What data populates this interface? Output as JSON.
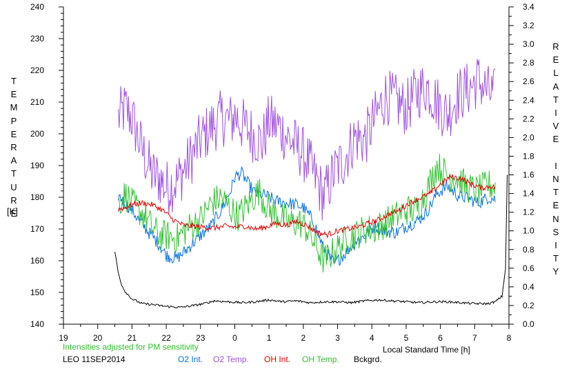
{
  "chart_data": {
    "type": "line",
    "left_axis_label": "TEMPERATURE",
    "left_axis_unit": "[K]",
    "right_axis_label": "RELATIVE INTENSITY",
    "xlabel": "Local Standard Time [h]",
    "left_ylim": [
      140,
      240
    ],
    "right_ylim": [
      0.0,
      3.4
    ],
    "x_range_hours": [
      19,
      32
    ],
    "x_tick_labels": [
      "19",
      "20",
      "21",
      "22",
      "23",
      "0",
      "1",
      "2",
      "3",
      "4",
      "5",
      "6",
      "7",
      "8"
    ],
    "left_tick_labels": [
      "140",
      "150",
      "160",
      "170",
      "180",
      "190",
      "200",
      "210",
      "220",
      "230",
      "240"
    ],
    "right_tick_labels": [
      "0.0",
      "0.2",
      "0.4",
      "0.6",
      "0.8",
      "1.0",
      "1.2",
      "1.4",
      "1.6",
      "1.8",
      "2.0",
      "2.2",
      "2.4",
      "2.6",
      "2.8",
      "3.0",
      "3.2",
      "3.4"
    ],
    "note": "Intensities adjusted for PM sensitivity",
    "station": "LEO 11SEP2014",
    "grid": false,
    "series": [
      {
        "name": "O2 Int.",
        "color": "#0070e0",
        "axis": "right",
        "x": [
          20.6,
          20.8,
          21.0,
          21.2,
          21.5,
          21.8,
          22.0,
          22.3,
          22.6,
          23.0,
          23.3,
          23.6,
          23.9,
          24.0,
          24.2,
          24.4,
          24.6,
          24.9,
          25.2,
          25.5,
          25.8,
          26.0,
          26.3,
          26.6,
          26.9,
          27.2,
          27.5,
          27.8,
          28.1,
          28.4,
          28.7,
          29.0,
          29.3,
          29.6,
          29.9,
          30.2,
          30.5,
          30.8,
          31.1,
          31.4,
          31.6
        ],
        "y": [
          1.38,
          1.3,
          1.22,
          1.12,
          0.98,
          0.85,
          0.74,
          0.7,
          0.8,
          0.95,
          1.05,
          1.22,
          1.45,
          1.58,
          1.62,
          1.5,
          1.4,
          1.38,
          1.32,
          1.3,
          1.28,
          1.25,
          1.1,
          0.8,
          0.65,
          0.75,
          0.88,
          0.95,
          1.05,
          1.0,
          0.98,
          1.05,
          1.1,
          1.2,
          1.4,
          1.48,
          1.38,
          1.35,
          1.3,
          1.36,
          1.34
        ]
      },
      {
        "name": "O2 Temp.",
        "color": "#a050e0",
        "axis": "left",
        "x": [
          20.6,
          20.8,
          21.0,
          21.2,
          21.4,
          21.6,
          21.8,
          22.0,
          22.3,
          22.6,
          23.0,
          23.3,
          23.6,
          23.9,
          24.0,
          24.2,
          24.5,
          24.8,
          25.0,
          25.3,
          25.6,
          25.9,
          26.1,
          26.4,
          26.6,
          26.9,
          27.2,
          27.5,
          27.8,
          28.1,
          28.4,
          28.7,
          29.0,
          29.3,
          29.6,
          29.9,
          30.2,
          30.5,
          30.8,
          31.1,
          31.4,
          31.6
        ],
        "y": [
          205,
          208,
          205,
          198,
          192,
          187,
          186,
          183,
          185,
          190,
          198,
          202,
          205,
          204,
          206,
          203,
          200,
          197,
          204,
          202,
          198,
          195,
          192,
          185,
          180,
          188,
          192,
          199,
          198,
          205,
          212,
          210,
          208,
          213,
          215,
          210,
          206,
          212,
          214,
          217,
          213,
          212
        ]
      },
      {
        "name": "OH Int.",
        "color": "#e00000",
        "axis": "right",
        "x": [
          20.6,
          20.8,
          21.0,
          21.3,
          21.6,
          21.9,
          22.2,
          22.5,
          22.8,
          23.1,
          23.4,
          23.7,
          24.0,
          24.3,
          24.6,
          24.9,
          25.2,
          25.5,
          25.8,
          26.1,
          26.4,
          26.7,
          27.0,
          27.3,
          27.6,
          27.9,
          28.2,
          28.5,
          28.8,
          29.1,
          29.4,
          29.7,
          30.0,
          30.3,
          30.6,
          30.9,
          31.2,
          31.5,
          31.6
        ],
        "y": [
          1.23,
          1.25,
          1.28,
          1.3,
          1.28,
          1.22,
          1.12,
          1.06,
          1.05,
          1.04,
          1.03,
          1.05,
          1.04,
          1.05,
          1.02,
          1.04,
          1.08,
          1.06,
          1.1,
          1.06,
          0.98,
          0.96,
          1.0,
          1.02,
          1.04,
          1.08,
          1.12,
          1.18,
          1.22,
          1.3,
          1.35,
          1.4,
          1.5,
          1.58,
          1.56,
          1.5,
          1.46,
          1.48,
          1.46
        ]
      },
      {
        "name": "OH Temp.",
        "color": "#30c030",
        "axis": "left",
        "x": [
          20.6,
          20.8,
          21.0,
          21.2,
          21.4,
          21.6,
          21.8,
          22.0,
          22.3,
          22.6,
          23.0,
          23.3,
          23.6,
          23.9,
          24.1,
          24.4,
          24.7,
          25.0,
          25.3,
          25.6,
          25.9,
          26.1,
          26.4,
          26.6,
          26.9,
          27.2,
          27.5,
          27.8,
          28.1,
          28.4,
          28.7,
          29.0,
          29.3,
          29.6,
          29.9,
          30.2,
          30.5,
          30.8,
          31.1,
          31.4,
          31.6
        ],
        "y": [
          178,
          181,
          178,
          176,
          174,
          170,
          168,
          168,
          167,
          170,
          173,
          178,
          180,
          176,
          174,
          178,
          182,
          176,
          174,
          172,
          172,
          170,
          164,
          160,
          163,
          166,
          168,
          170,
          170,
          172,
          174,
          176,
          176,
          182,
          190,
          187,
          186,
          183,
          182,
          184,
          183
        ]
      },
      {
        "name": "Bckgrd.",
        "color": "#000000",
        "axis": "right",
        "x": [
          20.5,
          20.6,
          20.7,
          20.8,
          21.0,
          21.3,
          21.6,
          22.0,
          22.4,
          22.8,
          23.1,
          23.4,
          23.8,
          24.2,
          24.6,
          25.0,
          25.4,
          25.8,
          26.2,
          26.6,
          27.0,
          27.4,
          27.8,
          28.2,
          28.6,
          29.0,
          29.4,
          29.8,
          30.2,
          30.6,
          31.0,
          31.4,
          31.6,
          31.8,
          31.9,
          31.95
        ],
        "y": [
          0.78,
          0.55,
          0.42,
          0.35,
          0.27,
          0.22,
          0.21,
          0.19,
          0.18,
          0.2,
          0.22,
          0.25,
          0.24,
          0.23,
          0.24,
          0.26,
          0.24,
          0.25,
          0.23,
          0.24,
          0.24,
          0.23,
          0.25,
          0.26,
          0.25,
          0.24,
          0.23,
          0.24,
          0.24,
          0.23,
          0.22,
          0.22,
          0.24,
          0.3,
          0.6,
          1.6
        ]
      }
    ]
  }
}
